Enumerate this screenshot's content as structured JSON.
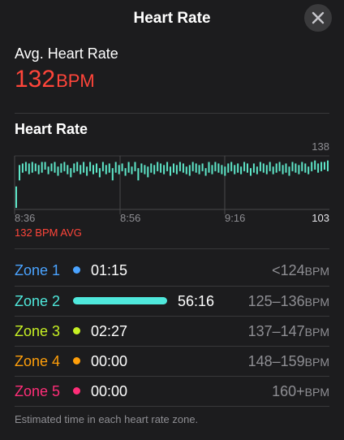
{
  "header": {
    "title": "Heart Rate",
    "close_icon": "close-icon"
  },
  "summary": {
    "label": "Avg. Heart Rate",
    "value": "132",
    "unit": "BPM",
    "color": "#ff453a"
  },
  "chart_section": {
    "title": "Heart Rate"
  },
  "chart_data": {
    "type": "bar",
    "title": "",
    "x_tick_labels": [
      "8:36",
      "8:56",
      "9:16"
    ],
    "y_max_label": "138",
    "y_min_label": "103",
    "ylim": [
      103,
      138
    ],
    "avg_caption": "132 BPM AVG",
    "series": [
      {
        "color": "#5ee6c8",
        "ranges": [
          [
            104,
            118
          ],
          [
            122,
            132
          ],
          [
            127,
            133
          ],
          [
            128,
            134
          ],
          [
            126,
            133
          ],
          [
            127,
            134
          ],
          [
            128,
            133
          ],
          [
            126,
            132
          ],
          [
            127,
            134
          ],
          [
            129,
            134
          ],
          [
            126,
            131
          ],
          [
            128,
            133
          ],
          [
            127,
            134
          ],
          [
            125,
            131
          ],
          [
            127,
            133
          ],
          [
            128,
            134
          ],
          [
            126,
            132
          ],
          [
            124,
            130
          ],
          [
            127,
            133
          ],
          [
            128,
            134
          ],
          [
            126,
            132
          ],
          [
            127,
            134
          ],
          [
            125,
            131
          ],
          [
            128,
            134
          ],
          [
            126,
            132
          ],
          [
            127,
            133
          ],
          [
            124,
            130
          ],
          [
            128,
            134
          ],
          [
            126,
            132
          ],
          [
            127,
            133
          ],
          [
            122,
            130
          ],
          [
            127,
            134
          ],
          [
            126,
            132
          ],
          [
            128,
            133
          ],
          [
            125,
            130
          ],
          [
            127,
            134
          ],
          [
            126,
            131
          ],
          [
            128,
            134
          ],
          [
            122,
            130
          ],
          [
            127,
            133
          ],
          [
            126,
            132
          ],
          [
            124,
            131
          ],
          [
            127,
            133
          ],
          [
            126,
            132
          ],
          [
            128,
            134
          ],
          [
            127,
            133
          ],
          [
            126,
            132
          ],
          [
            128,
            134
          ],
          [
            125,
            131
          ],
          [
            127,
            133
          ],
          [
            126,
            132
          ],
          [
            128,
            134
          ],
          [
            127,
            133
          ],
          [
            126,
            131
          ],
          [
            125,
            132
          ],
          [
            128,
            134
          ],
          [
            127,
            133
          ],
          [
            126,
            132
          ],
          [
            128,
            133
          ],
          [
            125,
            130
          ],
          [
            127,
            134
          ],
          [
            126,
            132
          ],
          [
            128,
            134
          ],
          [
            127,
            133
          ],
          [
            126,
            132
          ],
          [
            125,
            131
          ],
          [
            127,
            133
          ],
          [
            128,
            134
          ],
          [
            126,
            132
          ],
          [
            127,
            133
          ],
          [
            126,
            131
          ],
          [
            128,
            134
          ],
          [
            127,
            133
          ],
          [
            125,
            130
          ],
          [
            127,
            133
          ],
          [
            126,
            131
          ],
          [
            128,
            134
          ],
          [
            127,
            133
          ],
          [
            126,
            132
          ],
          [
            128,
            134
          ],
          [
            126,
            131
          ],
          [
            127,
            133
          ],
          [
            128,
            134
          ],
          [
            126,
            132
          ],
          [
            127,
            133
          ],
          [
            125,
            131
          ],
          [
            128,
            134
          ],
          [
            127,
            133
          ],
          [
            126,
            132
          ],
          [
            128,
            134
          ],
          [
            127,
            133
          ],
          [
            126,
            131
          ],
          [
            128,
            134
          ],
          [
            129,
            135
          ],
          [
            127,
            133
          ],
          [
            128,
            134
          ],
          [
            129,
            134
          ],
          [
            128,
            135
          ]
        ]
      }
    ]
  },
  "zones": [
    {
      "name": "Zone 1",
      "time": "01:15",
      "range": "<124",
      "unit": "BPM",
      "color": "#4aa3ff",
      "fraction": 0.02
    },
    {
      "name": "Zone 2",
      "time": "56:16",
      "range": "125–136",
      "unit": "BPM",
      "color": "#4fe8dc",
      "fraction": 0.93
    },
    {
      "name": "Zone 3",
      "time": "02:27",
      "range": "137–147",
      "unit": "BPM",
      "color": "#c6f023",
      "fraction": 0.04
    },
    {
      "name": "Zone 4",
      "time": "00:00",
      "range": "148–159",
      "unit": "BPM",
      "color": "#ff9f0a",
      "fraction": 0.0
    },
    {
      "name": "Zone 5",
      "time": "00:00",
      "range": "160+",
      "unit": "BPM",
      "color": "#ff2d78",
      "fraction": 0.0
    }
  ],
  "footnote": "Estimated time in each heart rate zone."
}
